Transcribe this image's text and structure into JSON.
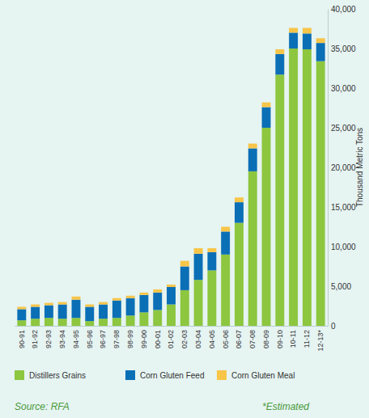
{
  "chart_data": {
    "type": "bar",
    "stacked": true,
    "legend": "bottom",
    "grid": false,
    "y_label": "Thousand Metric Tons",
    "annotations": [
      "Source: RFA",
      "*Estimated"
    ],
    "categories": [
      "90-91",
      "91-92",
      "92-93",
      "93-94",
      "94-95",
      "95-96",
      "96-97",
      "97-98",
      "98-99",
      "99-00",
      "00-01",
      "01-02",
      "02-03",
      "03-04",
      "04-05",
      "05-06",
      "06-07",
      "07-08",
      "08-09",
      "09-10",
      "10-11",
      "11-12",
      "12-13*"
    ],
    "series": [
      {
        "name": "Distillers Grains",
        "color": "#8dc63f",
        "values": [
          700,
          900,
          1000,
          900,
          1000,
          600,
          900,
          1000,
          1300,
          1700,
          2000,
          2700,
          4500,
          5800,
          7000,
          9000,
          13000,
          19500,
          25000,
          31700,
          35000,
          34900,
          33400
        ]
      },
      {
        "name": "Corn Gluten Feed",
        "color": "#0b6fb6",
        "values": [
          1400,
          1500,
          1600,
          1800,
          2300,
          1800,
          1800,
          2200,
          2200,
          2200,
          2200,
          2200,
          3000,
          3300,
          2300,
          2900,
          2600,
          2900,
          2600,
          2600,
          2000,
          2000,
          2300
        ]
      },
      {
        "name": "Corn Gluten Meal",
        "color": "#f7c548",
        "values": [
          300,
          300,
          300,
          300,
          400,
          300,
          300,
          300,
          300,
          300,
          400,
          300,
          700,
          700,
          500,
          600,
          600,
          600,
          600,
          600,
          600,
          700,
          600
        ]
      }
    ],
    "ylim": [
      0,
      40000
    ],
    "yticks": [
      0,
      {
        "value": 5000,
        "label": "5,000"
      },
      {
        "value": 10000,
        "label": "10,000"
      },
      {
        "value": 15000,
        "label": "15,000"
      },
      {
        "value": 20000,
        "label": "20,000"
      },
      {
        "value": 25000,
        "label": "25,000"
      },
      {
        "value": 30000,
        "label": "30,000"
      },
      {
        "value": 35000,
        "label": "35,000"
      },
      {
        "value": 40000,
        "label": "40,000"
      }
    ]
  }
}
